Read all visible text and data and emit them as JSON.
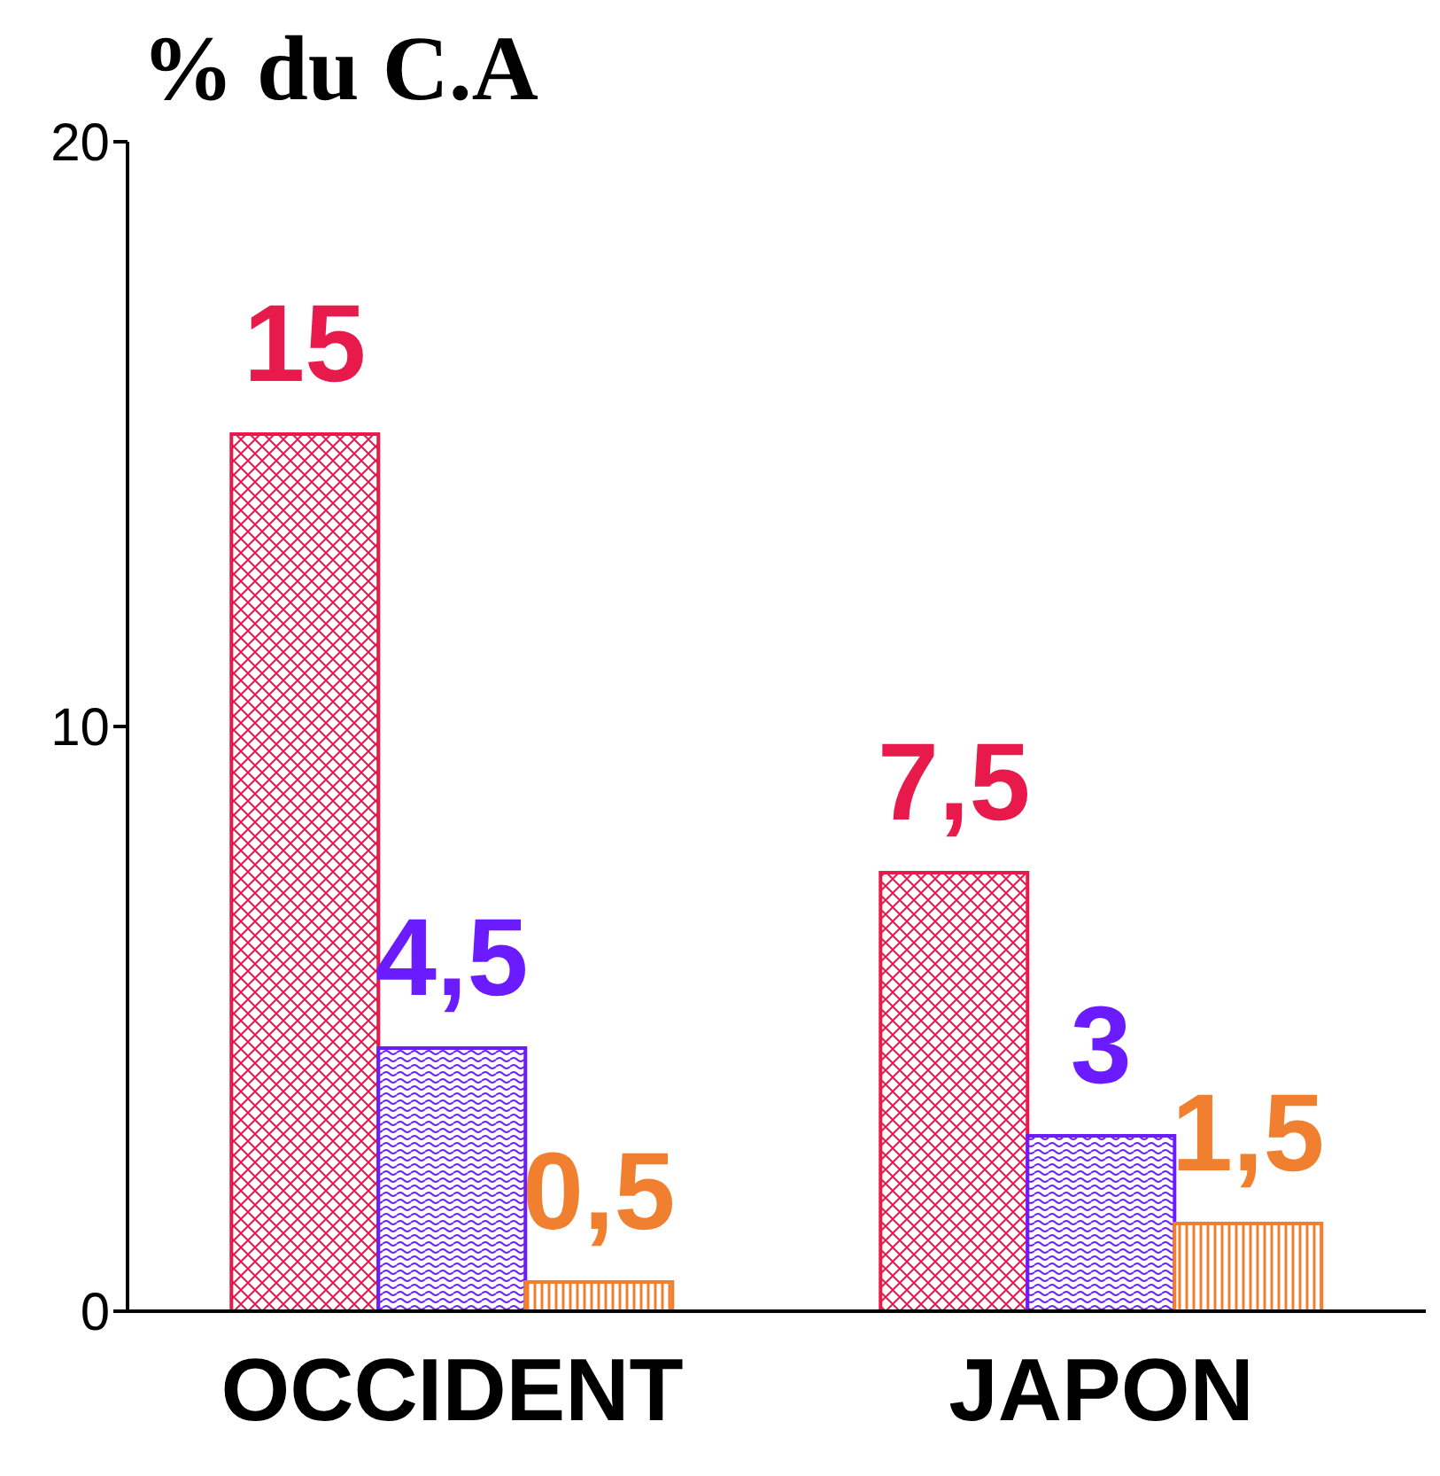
{
  "chart_data": {
    "type": "bar",
    "title": "% du C.A",
    "categories": [
      "OCCIDENT",
      "JAPON"
    ],
    "series": [
      {
        "color": "#e8194b",
        "values": [
          15,
          7.5
        ],
        "value_labels": [
          "15",
          "7,5"
        ]
      },
      {
        "color": "#6a1bff",
        "values": [
          4.5,
          3
        ],
        "value_labels": [
          "4,5",
          "3"
        ]
      },
      {
        "color": "#f08030",
        "values": [
          0.5,
          1.5
        ],
        "value_labels": [
          "0,5",
          "1,5"
        ]
      }
    ],
    "ylim": [
      0,
      20
    ],
    "yticks": [
      0,
      10,
      20
    ],
    "grid": false,
    "legend": false
  }
}
